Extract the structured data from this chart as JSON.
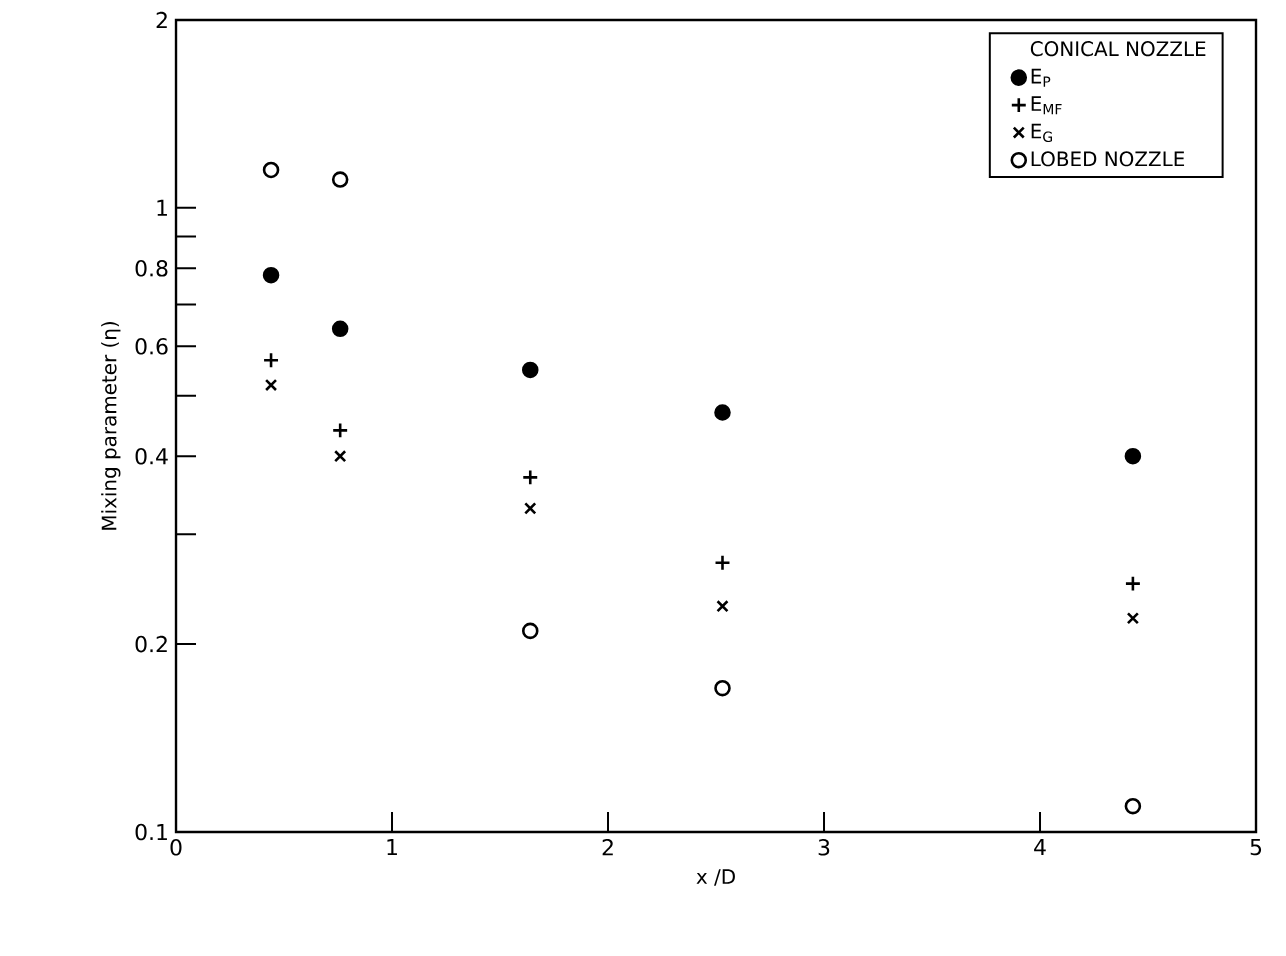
{
  "chart_data": {
    "type": "scatter",
    "xlabel": "x /D",
    "ylabel": "Mixing parameter (η)",
    "legend_title": "CONICAL NOZZLE",
    "x": [
      0.44,
      0.76,
      1.64,
      2.53,
      4.43
    ],
    "series": [
      {
        "name": "E$_{P}$",
        "color": "#000000",
        "marker": "circle",
        "values": [
          0.78,
          0.64,
          0.55,
          0.47,
          0.4
        ]
      },
      {
        "name": "E$_{MF}$",
        "color": "#000000",
        "marker": "plus",
        "values": [
          0.57,
          0.44,
          0.37,
          0.27,
          0.25
        ]
      },
      {
        "name": "E$_{G}$",
        "color": "#000000",
        "marker": "cross",
        "values": [
          0.52,
          0.4,
          0.33,
          0.23,
          0.22
        ]
      },
      {
        "name": "LOBED NOZZLE",
        "color": "#000000",
        "marker": "open circle",
        "values": [
          1.15,
          1.11,
          0.21,
          0.17,
          0.11
        ]
      }
    ],
    "xlim": [
      0,
      5
    ],
    "ylim": [
      0.1,
      2
    ],
    "log": "y",
    "xticks": [
      0,
      1,
      2,
      3,
      4,
      5
    ],
    "yticks": [
      0.1,
      0.2,
      {
        "value": 0.3,
        "label": null
      },
      0.4,
      {
        "value": 0.5,
        "label": null
      },
      0.6,
      {
        "value": 0.7,
        "label": null
      },
      0.8,
      {
        "value": 0.9,
        "label": null
      },
      1,
      2
    ],
    "grid": false,
    "legend": "top right"
  }
}
